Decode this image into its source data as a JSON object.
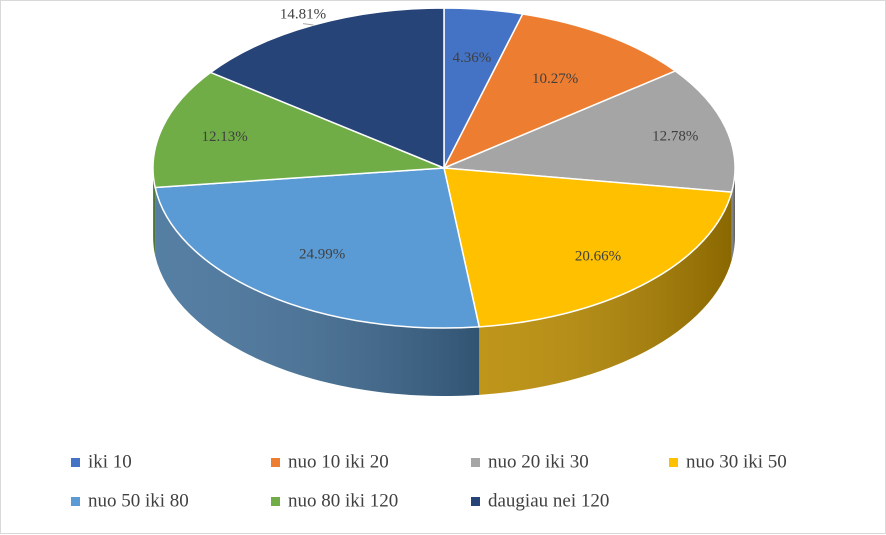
{
  "chart_data": {
    "type": "pie",
    "style": "3d",
    "categories": [
      "iki 10",
      "nuo 10 iki 20",
      "nuo 20 iki 30",
      "nuo 30 iki 50",
      "nuo 50 iki 80",
      "nuo 80 iki 120",
      "daugiau nei 120"
    ],
    "values": [
      4.36,
      10.27,
      12.78,
      20.66,
      24.99,
      12.13,
      14.81
    ],
    "labels": [
      "4.36%",
      "10.27%",
      "12.78%",
      "20.66%",
      "24.99%",
      "12.13%",
      "14.81%"
    ],
    "colors": [
      "#4472c4",
      "#ed7d31",
      "#a5a5a5",
      "#ffc000",
      "#5b9bd5",
      "#70ad47",
      "#264478"
    ],
    "legend_position": "bottom"
  }
}
